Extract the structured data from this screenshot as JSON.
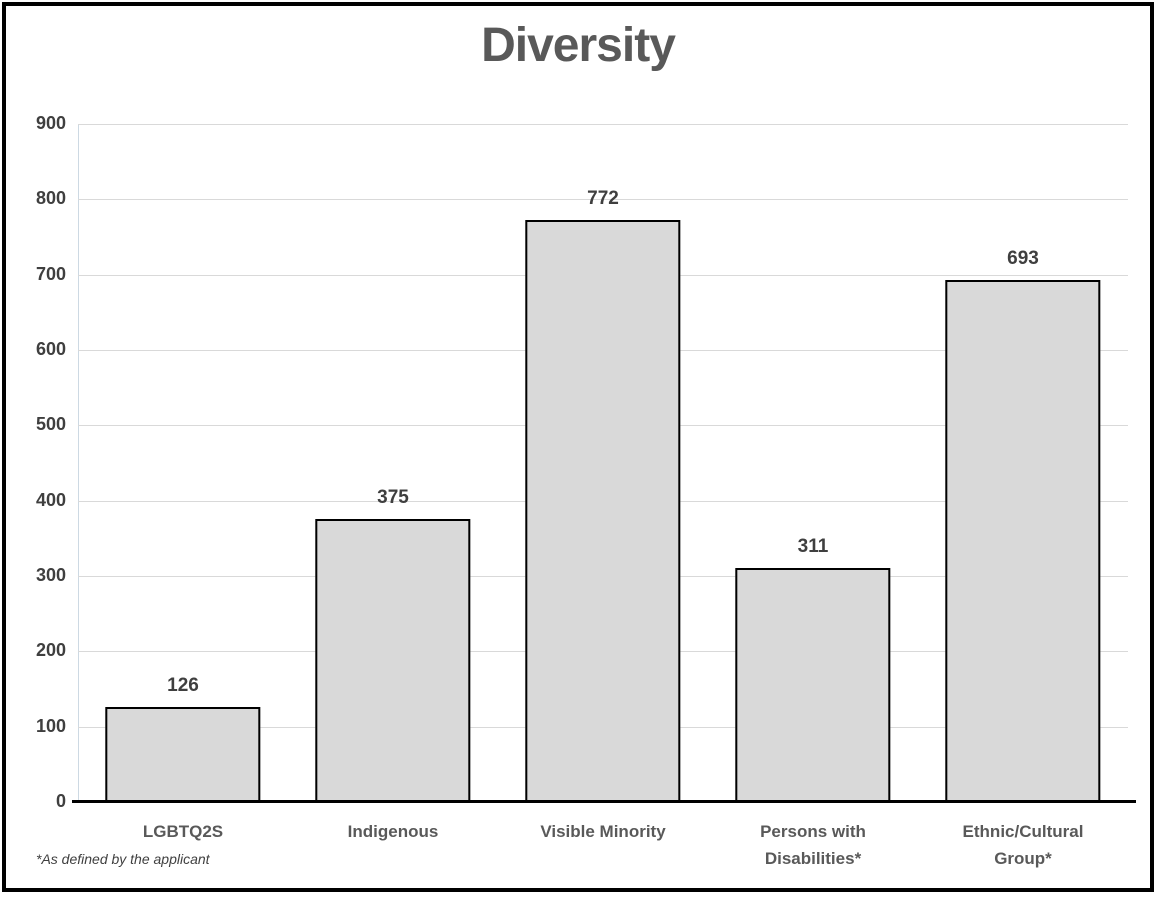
{
  "chart_data": {
    "type": "bar",
    "title": "Diversity",
    "categories": [
      "LGBTQ2S",
      "Indigenous",
      "Visible Minority",
      "Persons with Disabilities*",
      "Ethnic/Cultural Group*"
    ],
    "values": [
      126,
      375,
      772,
      311,
      693
    ],
    "ylim": [
      0,
      900
    ],
    "ytick_step": 100,
    "yticks": [
      900,
      800,
      700,
      600,
      500,
      400,
      300,
      200,
      100,
      0
    ],
    "grid": "horizontal-only",
    "legend": "none",
    "footnote": "*As defined by the applicant",
    "colors": {
      "bar_fill": "#d9d9d9",
      "bar_border": "#000000",
      "gridline": "#d9d9d9",
      "axis_line": "#000000",
      "title_text": "#595959",
      "value_label_text": "#3f3f3f",
      "category_label_text": "#595959"
    }
  }
}
